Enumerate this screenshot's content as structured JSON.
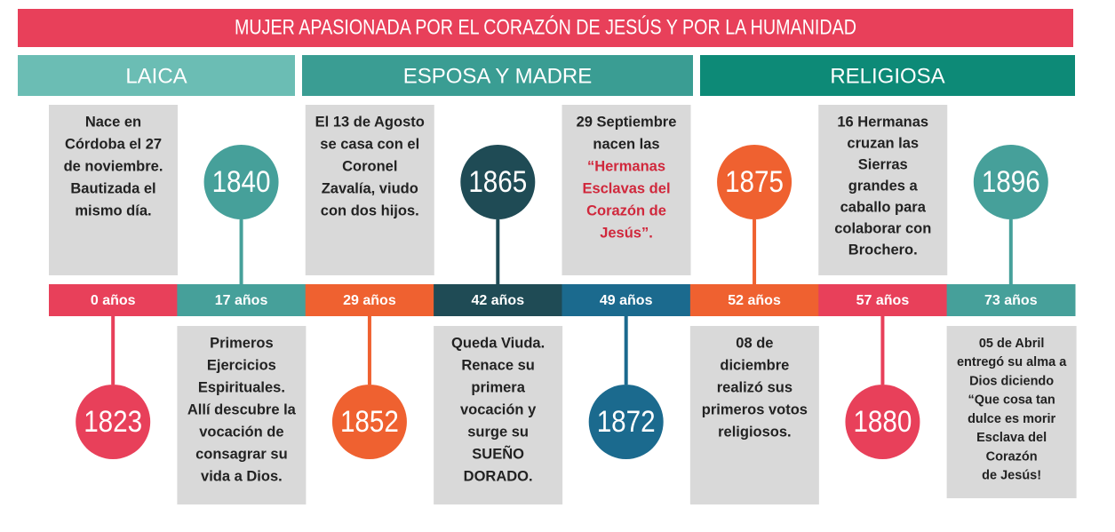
{
  "title": "MUJER APASIONADA POR EL CORAZÓN DE JESÚS Y POR LA HUMANIDAD",
  "phases": [
    {
      "label": "LAICA",
      "color": "#6bbdb4"
    },
    {
      "label": "ESPOSA Y MADRE",
      "color": "#3a9d93"
    },
    {
      "label": "RELIGIOSA",
      "color": "#0d8a77"
    }
  ],
  "events": [
    {
      "age": "0 años",
      "year": "1823",
      "color": "#e8405a",
      "lines": [
        "Nace en",
        "Córdoba el 27",
        "de noviembre.",
        "Bautizada el",
        "mismo día."
      ]
    },
    {
      "age": "17 años",
      "year": "1840",
      "color": "#46a09a",
      "lines": [
        "Primeros",
        "Ejercicios",
        "Espirituales.",
        "Allí descubre la",
        "vocación de",
        "consagrar su",
        "vida a Dios."
      ]
    },
    {
      "age": "29 años",
      "year": "1852",
      "color": "#ef6130",
      "lines": [
        "El 13 de Agosto",
        "se casa con el",
        "Coronel",
        "Zavalía, viudo",
        "con dos hijos."
      ]
    },
    {
      "age": "42 años",
      "year": "1865",
      "color": "#1f4b55",
      "lines": [
        "Queda Viuda.",
        "Renace  su",
        "primera",
        "vocación y",
        "surge su",
        "SUEÑO",
        "DORADO."
      ]
    },
    {
      "age": "49 años",
      "year": "1872",
      "color": "#1b6a8e",
      "lines": [
        "29 Septiembre",
        "nacen las"
      ],
      "highlight": [
        "“Hermanas",
        "Esclavas del",
        "Corazón de",
        "Jesús”."
      ]
    },
    {
      "age": "52 años",
      "year": "1875",
      "color": "#ef6130",
      "lines": [
        "08 de",
        "diciembre",
        "realizó sus",
        "primeros votos",
        "religiosos."
      ]
    },
    {
      "age": "57 años",
      "year": "1880",
      "color": "#e8405a",
      "lines": [
        "16 Hermanas",
        "cruzan las",
        "Sierras",
        "grandes a",
        "caballo para",
        "colaborar con",
        "Brochero."
      ]
    },
    {
      "age": "73 años",
      "year": "1896",
      "color": "#46a09a",
      "lines": [
        "05 de Abril",
        "entregó su alma a",
        "Dios diciendo",
        "“Que cosa tan",
        "dulce es morir",
        "Esclava del",
        "Corazón",
        "de Jesús!"
      ]
    }
  ]
}
